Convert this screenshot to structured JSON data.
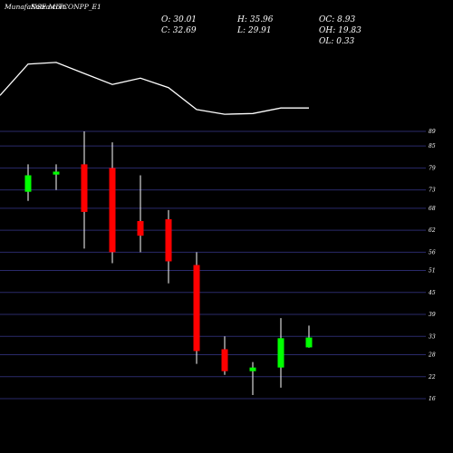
{
  "watermark": "MunafaSutra.com",
  "symbol_label": "NSE MITCONPP_E1",
  "stats": {
    "o": "O: 30.01",
    "h": "H: 35.96",
    "oc": "OC: 8.93",
    "c": "C: 32.69",
    "l": "L: 29.91",
    "oh": "OH: 19.83",
    "ol": "OL: 0.33"
  },
  "colors": {
    "background": "#000000",
    "up": "#00ff00",
    "down": "#ff0000",
    "grid": "#2a2a6a",
    "line": "#ffffff"
  },
  "chart_data": {
    "type": "candlestick",
    "y_ticks": [
      "89",
      "85",
      "79",
      "73",
      "68",
      "62",
      "56",
      "51",
      "45",
      "39",
      "33",
      "28",
      "22",
      "16"
    ],
    "candles": [
      {
        "open": 72.5,
        "high": 80.0,
        "low": 70.0,
        "close": 77.0
      },
      {
        "open": 77.2,
        "high": 80.0,
        "low": 73.0,
        "close": 78.0
      },
      {
        "open": 80.0,
        "high": 89.0,
        "low": 57.0,
        "close": 67.0
      },
      {
        "open": 79.0,
        "high": 86.0,
        "low": 53.0,
        "close": 56.0
      },
      {
        "open": 64.5,
        "high": 77.0,
        "low": 56.0,
        "close": 60.5
      },
      {
        "open": 65.0,
        "high": 67.5,
        "low": 47.5,
        "close": 53.5
      },
      {
        "open": 52.5,
        "high": 56.0,
        "low": 25.5,
        "close": 29.0
      },
      {
        "open": 29.5,
        "high": 33.0,
        "low": 22.5,
        "close": 23.5
      },
      {
        "open": 23.5,
        "high": 26.0,
        "low": 17.0,
        "close": 24.5
      },
      {
        "open": 24.5,
        "high": 38.0,
        "low": 19.0,
        "close": 32.5
      },
      {
        "open": 30.0,
        "high": 35.96,
        "low": 29.91,
        "close": 32.69
      }
    ],
    "indicator_line": [
      30,
      50,
      51,
      44,
      37,
      41,
      35,
      21,
      18,
      18.5,
      22,
      22
    ]
  }
}
